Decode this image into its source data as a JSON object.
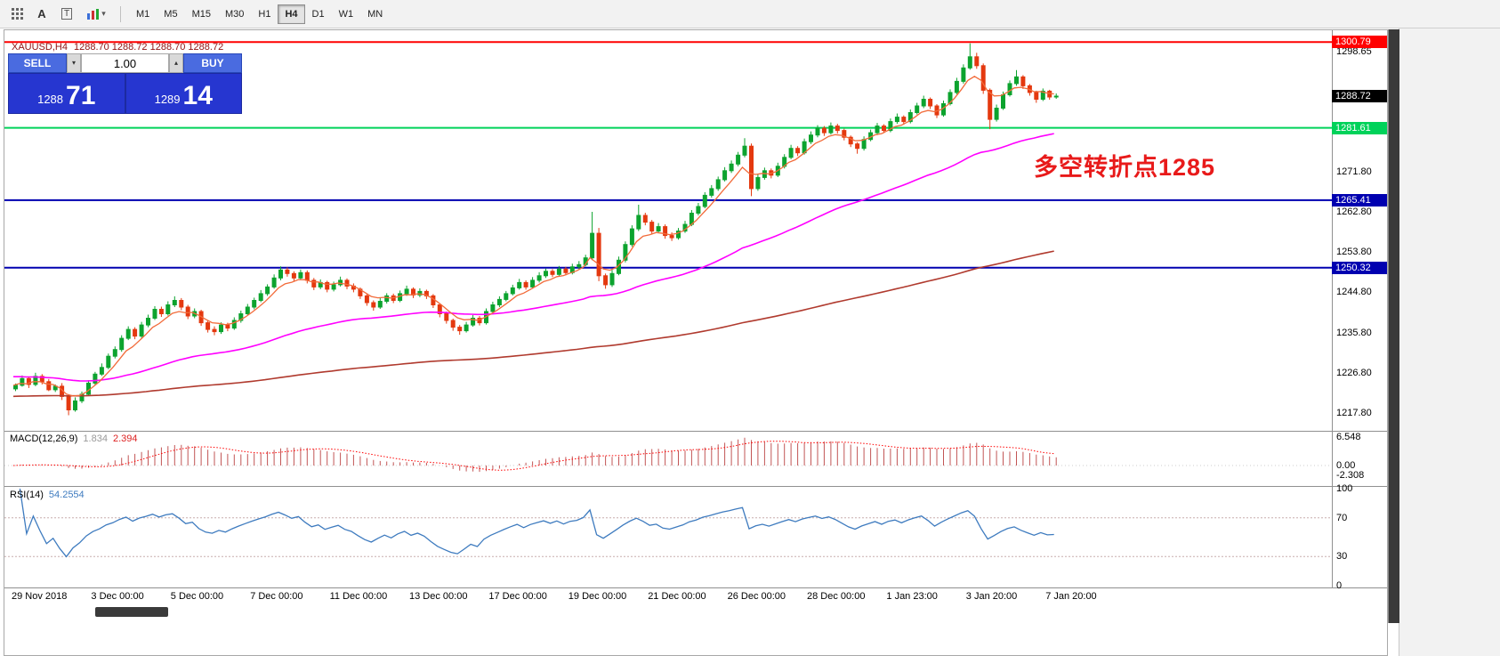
{
  "colors": {
    "candle_up": "#0ca32e",
    "candle_down": "#e4390f",
    "ma_fast": "#f26b3a",
    "ma_mid": "#ff00ff",
    "ma_slow": "#b03a2e",
    "macd_bar": "#c25555",
    "macd_signal": "#ff0000",
    "rsi_line": "#3e7bbf",
    "rsi_level": "#c8aeae",
    "annotation": "#e81a1a",
    "current_badge": "#000000"
  },
  "toolbar": {
    "tool_labels": {
      "cursor": "A",
      "text": "T"
    },
    "timeframes": [
      "M1",
      "M5",
      "M15",
      "M30",
      "H1",
      "H4",
      "D1",
      "W1",
      "MN"
    ],
    "active_timeframe": "H4"
  },
  "header": {
    "symbol": "XAUUSD,H4",
    "ohlc": "1288.70 1288.72 1288.70 1288.72"
  },
  "trade_panel": {
    "sell_label": "SELL",
    "buy_label": "BUY",
    "volume": "1.00",
    "sell_big": "1288",
    "sell_pips": "71",
    "buy_big": "1289",
    "buy_pips": "14"
  },
  "macd_panel": {
    "label": "MACD(12,26,9)",
    "main": "1.834",
    "signal": "2.394"
  },
  "rsi_panel": {
    "label": "RSI(14)",
    "value": "54.2554"
  },
  "chart_data": {
    "type": "candlestick",
    "symbol": "XAUUSD",
    "timeframe": "H4",
    "current_price": 1288.72,
    "price_axis_ticks": [
      1298.65,
      1271.8,
      1262.8,
      1253.8,
      1244.8,
      1235.8,
      1226.8,
      1217.8
    ],
    "horizontal_lines": [
      {
        "price": 1300.79,
        "color": "#ff0000"
      },
      {
        "price": 1281.61,
        "color": "#00d25a"
      },
      {
        "price": 1265.41,
        "color": "#0000b0"
      },
      {
        "price": 1250.32,
        "color": "#0000b0"
      }
    ],
    "time_labels": [
      {
        "i": 0,
        "label": "29 Nov 2018"
      },
      {
        "i": 12,
        "label": "3 Dec 00:00"
      },
      {
        "i": 24,
        "label": "5 Dec 00:00"
      },
      {
        "i": 36,
        "label": "7 Dec 00:00"
      },
      {
        "i": 48,
        "label": "11 Dec 00:00"
      },
      {
        "i": 60,
        "label": "13 Dec 00:00"
      },
      {
        "i": 72,
        "label": "17 Dec 00:00"
      },
      {
        "i": 84,
        "label": "19 Dec 00:00"
      },
      {
        "i": 96,
        "label": "21 Dec 00:00"
      },
      {
        "i": 108,
        "label": "26 Dec 00:00"
      },
      {
        "i": 120,
        "label": "28 Dec 00:00"
      },
      {
        "i": 132,
        "label": "1 Jan 23:00"
      },
      {
        "i": 144,
        "label": "3 Jan 20:00"
      },
      {
        "i": 156,
        "label": "7 Jan 20:00"
      }
    ],
    "macd_scale": [
      {
        "v": 6.548,
        "label": "6.548"
      },
      {
        "v": 0,
        "label": "0.00"
      },
      {
        "v": -2.308,
        "label": "-2.308"
      }
    ],
    "rsi_scale": [
      100,
      70,
      30,
      0
    ],
    "rsi_levels": [
      70,
      30
    ],
    "annotation": {
      "text": "多空转折点1285"
    },
    "candles": [
      [
        1223.2,
        1224.4,
        1222.7,
        1224.0
      ],
      [
        1224.0,
        1226.2,
        1223.7,
        1225.5
      ],
      [
        1225.5,
        1225.8,
        1223.4,
        1224.2
      ],
      [
        1224.2,
        1226.8,
        1223.8,
        1226.0
      ],
      [
        1226.0,
        1226.5,
        1224.2,
        1224.8
      ],
      [
        1224.8,
        1225.4,
        1222.7,
        1223.0
      ],
      [
        1223.0,
        1224.2,
        1222.5,
        1223.8
      ],
      [
        1223.8,
        1224.5,
        1220.7,
        1221.5
      ],
      [
        1221.5,
        1221.8,
        1217.3,
        1218.5
      ],
      [
        1218.5,
        1221.3,
        1218.1,
        1220.5
      ],
      [
        1220.5,
        1222.6,
        1220.0,
        1222.0
      ],
      [
        1222.0,
        1225.1,
        1221.6,
        1224.5
      ],
      [
        1224.5,
        1227.0,
        1224.0,
        1226.5
      ],
      [
        1226.5,
        1228.9,
        1226.1,
        1228.0
      ],
      [
        1228.0,
        1231.1,
        1227.6,
        1230.5
      ],
      [
        1230.5,
        1232.7,
        1230.0,
        1232.0
      ],
      [
        1232.0,
        1235.2,
        1231.5,
        1234.5
      ],
      [
        1234.5,
        1237.2,
        1234.1,
        1236.5
      ],
      [
        1236.5,
        1237.0,
        1234.3,
        1235.0
      ],
      [
        1235.0,
        1238.2,
        1234.6,
        1237.5
      ],
      [
        1237.5,
        1239.8,
        1237.0,
        1239.0
      ],
      [
        1239.0,
        1241.7,
        1238.6,
        1241.0
      ],
      [
        1241.0,
        1241.6,
        1239.3,
        1240.0
      ],
      [
        1240.0,
        1242.8,
        1239.6,
        1242.0
      ],
      [
        1242.0,
        1243.9,
        1241.5,
        1243.0
      ],
      [
        1243.0,
        1243.5,
        1240.8,
        1241.5
      ],
      [
        1241.5,
        1242.0,
        1238.8,
        1239.5
      ],
      [
        1239.5,
        1241.2,
        1239.0,
        1240.5
      ],
      [
        1240.5,
        1240.9,
        1237.3,
        1238.0
      ],
      [
        1238.0,
        1238.4,
        1235.8,
        1236.5
      ],
      [
        1236.5,
        1237.2,
        1235.2,
        1236.0
      ],
      [
        1236.0,
        1238.1,
        1235.5,
        1237.5
      ],
      [
        1237.5,
        1238.0,
        1236.1,
        1236.8
      ],
      [
        1236.8,
        1239.2,
        1236.4,
        1238.5
      ],
      [
        1238.5,
        1240.7,
        1238.0,
        1240.0
      ],
      [
        1240.0,
        1242.2,
        1239.6,
        1241.5
      ],
      [
        1241.5,
        1243.6,
        1241.0,
        1243.0
      ],
      [
        1243.0,
        1245.3,
        1242.6,
        1244.5
      ],
      [
        1244.5,
        1246.6,
        1244.0,
        1246.0
      ],
      [
        1246.0,
        1248.8,
        1245.6,
        1248.0
      ],
      [
        1248.0,
        1250.6,
        1247.5,
        1249.8
      ],
      [
        1249.8,
        1250.4,
        1248.3,
        1249.0
      ],
      [
        1249.0,
        1249.5,
        1247.3,
        1248.0
      ],
      [
        1248.0,
        1249.9,
        1247.6,
        1249.2
      ],
      [
        1249.2,
        1249.7,
        1246.8,
        1247.5
      ],
      [
        1247.5,
        1248.0,
        1245.3,
        1246.0
      ],
      [
        1246.0,
        1247.7,
        1245.5,
        1247.0
      ],
      [
        1247.0,
        1247.4,
        1244.8,
        1245.5
      ],
      [
        1245.5,
        1247.2,
        1245.0,
        1246.5
      ],
      [
        1246.5,
        1248.3,
        1246.1,
        1247.5
      ],
      [
        1247.5,
        1247.9,
        1245.5,
        1246.2
      ],
      [
        1246.2,
        1246.8,
        1244.8,
        1245.5
      ],
      [
        1245.5,
        1245.9,
        1243.3,
        1244.0
      ],
      [
        1244.0,
        1244.4,
        1241.8,
        1242.5
      ],
      [
        1242.5,
        1243.0,
        1240.7,
        1241.5
      ],
      [
        1241.5,
        1243.5,
        1241.1,
        1242.8
      ],
      [
        1242.8,
        1244.6,
        1242.3,
        1244.0
      ],
      [
        1244.0,
        1244.5,
        1242.4,
        1243.0
      ],
      [
        1243.0,
        1245.2,
        1242.6,
        1244.5
      ],
      [
        1244.5,
        1246.3,
        1244.0,
        1245.5
      ],
      [
        1245.5,
        1245.9,
        1243.5,
        1244.2
      ],
      [
        1244.2,
        1245.7,
        1243.7,
        1245.0
      ],
      [
        1245.0,
        1245.4,
        1243.3,
        1244.0
      ],
      [
        1244.0,
        1244.4,
        1241.3,
        1242.0
      ],
      [
        1242.0,
        1242.4,
        1239.2,
        1240.0
      ],
      [
        1240.0,
        1240.5,
        1237.8,
        1238.5
      ],
      [
        1238.5,
        1238.9,
        1236.2,
        1237.0
      ],
      [
        1237.0,
        1237.5,
        1235.3,
        1236.2
      ],
      [
        1236.2,
        1238.2,
        1235.8,
        1237.5
      ],
      [
        1237.5,
        1239.7,
        1237.1,
        1239.0
      ],
      [
        1239.0,
        1239.5,
        1237.4,
        1238.0
      ],
      [
        1238.0,
        1241.2,
        1237.6,
        1240.5
      ],
      [
        1240.5,
        1242.7,
        1240.1,
        1242.0
      ],
      [
        1242.0,
        1243.9,
        1241.5,
        1243.2
      ],
      [
        1243.2,
        1245.1,
        1242.8,
        1244.5
      ],
      [
        1244.5,
        1246.5,
        1244.1,
        1245.8
      ],
      [
        1245.8,
        1247.8,
        1245.4,
        1247.0
      ],
      [
        1247.0,
        1247.5,
        1245.4,
        1246.0
      ],
      [
        1246.0,
        1248.2,
        1245.6,
        1247.5
      ],
      [
        1247.5,
        1249.3,
        1247.0,
        1248.5
      ],
      [
        1248.5,
        1250.1,
        1248.0,
        1249.5
      ],
      [
        1249.5,
        1250.0,
        1248.2,
        1248.8
      ],
      [
        1248.8,
        1250.7,
        1248.4,
        1250.0
      ],
      [
        1250.0,
        1250.5,
        1248.6,
        1249.2
      ],
      [
        1249.2,
        1251.2,
        1248.8,
        1250.5
      ],
      [
        1250.5,
        1251.8,
        1250.0,
        1251.0
      ],
      [
        1251.0,
        1253.2,
        1250.6,
        1252.5
      ],
      [
        1252.5,
        1262.8,
        1252.0,
        1258.0
      ],
      [
        1258.0,
        1259.2,
        1247.3,
        1248.5
      ],
      [
        1248.5,
        1249.0,
        1245.6,
        1246.5
      ],
      [
        1246.5,
        1249.8,
        1246.0,
        1249.0
      ],
      [
        1249.0,
        1252.8,
        1248.6,
        1252.0
      ],
      [
        1252.0,
        1256.2,
        1251.5,
        1255.5
      ],
      [
        1255.5,
        1259.8,
        1255.0,
        1259.0
      ],
      [
        1259.0,
        1264.4,
        1258.5,
        1262.0
      ],
      [
        1262.0,
        1262.6,
        1259.8,
        1260.5
      ],
      [
        1260.5,
        1261.0,
        1257.8,
        1258.5
      ],
      [
        1258.5,
        1260.3,
        1258.0,
        1259.5
      ],
      [
        1259.5,
        1260.0,
        1256.8,
        1257.5
      ],
      [
        1257.5,
        1258.2,
        1256.3,
        1257.0
      ],
      [
        1257.0,
        1259.2,
        1256.6,
        1258.5
      ],
      [
        1258.5,
        1260.8,
        1258.1,
        1260.0
      ],
      [
        1260.0,
        1263.2,
        1259.6,
        1262.5
      ],
      [
        1262.5,
        1264.8,
        1262.0,
        1264.0
      ],
      [
        1264.0,
        1267.2,
        1263.6,
        1266.5
      ],
      [
        1266.5,
        1268.8,
        1266.0,
        1268.0
      ],
      [
        1268.0,
        1270.7,
        1267.5,
        1270.0
      ],
      [
        1270.0,
        1272.8,
        1269.6,
        1272.0
      ],
      [
        1272.0,
        1274.3,
        1271.5,
        1273.5
      ],
      [
        1273.5,
        1276.2,
        1273.0,
        1275.5
      ],
      [
        1275.5,
        1279.3,
        1275.0,
        1277.5
      ],
      [
        1277.5,
        1278.1,
        1266.3,
        1268.0
      ],
      [
        1268.0,
        1271.2,
        1267.5,
        1270.5
      ],
      [
        1270.5,
        1272.7,
        1270.0,
        1272.0
      ],
      [
        1272.0,
        1272.5,
        1270.3,
        1271.0
      ],
      [
        1271.0,
        1273.8,
        1270.6,
        1273.0
      ],
      [
        1273.0,
        1275.7,
        1272.5,
        1275.0
      ],
      [
        1275.0,
        1277.8,
        1274.6,
        1277.0
      ],
      [
        1277.0,
        1277.5,
        1275.3,
        1276.0
      ],
      [
        1276.0,
        1279.2,
        1275.6,
        1278.5
      ],
      [
        1278.5,
        1280.8,
        1278.0,
        1280.0
      ],
      [
        1280.0,
        1282.2,
        1279.5,
        1281.5
      ],
      [
        1281.5,
        1282.0,
        1279.8,
        1280.5
      ],
      [
        1280.5,
        1282.8,
        1280.1,
        1282.0
      ],
      [
        1282.0,
        1282.5,
        1280.3,
        1281.0
      ],
      [
        1281.0,
        1281.4,
        1278.8,
        1279.5
      ],
      [
        1279.5,
        1279.9,
        1277.3,
        1278.0
      ],
      [
        1278.0,
        1278.4,
        1275.8,
        1277.0
      ],
      [
        1277.0,
        1279.7,
        1276.5,
        1279.0
      ],
      [
        1279.0,
        1281.2,
        1278.6,
        1280.5
      ],
      [
        1280.5,
        1282.7,
        1280.0,
        1282.0
      ],
      [
        1282.0,
        1282.4,
        1280.4,
        1281.0
      ],
      [
        1281.0,
        1283.7,
        1280.6,
        1283.0
      ],
      [
        1283.0,
        1284.8,
        1282.5,
        1284.0
      ],
      [
        1284.0,
        1284.4,
        1282.3,
        1283.0
      ],
      [
        1283.0,
        1285.7,
        1282.6,
        1285.0
      ],
      [
        1285.0,
        1287.2,
        1284.6,
        1286.5
      ],
      [
        1286.5,
        1288.8,
        1286.0,
        1288.0
      ],
      [
        1288.0,
        1288.4,
        1285.8,
        1286.5
      ],
      [
        1286.5,
        1286.9,
        1283.8,
        1284.5
      ],
      [
        1284.5,
        1287.7,
        1284.1,
        1287.0
      ],
      [
        1287.0,
        1290.2,
        1286.6,
        1289.5
      ],
      [
        1289.5,
        1292.8,
        1289.1,
        1292.0
      ],
      [
        1292.0,
        1295.8,
        1291.5,
        1295.0
      ],
      [
        1295.0,
        1300.5,
        1294.6,
        1297.5
      ],
      [
        1297.5,
        1298.4,
        1294.8,
        1295.5
      ],
      [
        1295.5,
        1296.0,
        1289.2,
        1290.0
      ],
      [
        1290.0,
        1290.4,
        1281.3,
        1283.5
      ],
      [
        1283.5,
        1286.8,
        1283.0,
        1286.0
      ],
      [
        1286.0,
        1289.7,
        1285.6,
        1289.0
      ],
      [
        1289.0,
        1292.2,
        1288.6,
        1291.5
      ],
      [
        1291.5,
        1294.5,
        1291.0,
        1293.0
      ],
      [
        1293.0,
        1293.4,
        1290.3,
        1291.0
      ],
      [
        1291.0,
        1291.4,
        1288.8,
        1289.5
      ],
      [
        1289.5,
        1289.9,
        1287.2,
        1288.0
      ],
      [
        1288.0,
        1290.4,
        1287.6,
        1289.8
      ],
      [
        1289.8,
        1290.1,
        1287.9,
        1288.5
      ],
      [
        1288.5,
        1289.3,
        1288.1,
        1288.7
      ]
    ]
  }
}
